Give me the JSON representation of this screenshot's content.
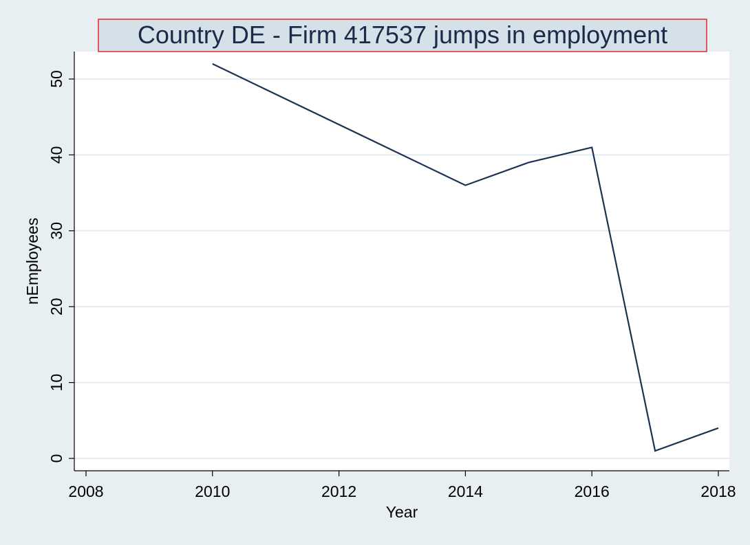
{
  "chart_data": {
    "type": "line",
    "title": "Country DE - Firm 417537  jumps in employment",
    "xlabel": "Year",
    "ylabel": "nEmployees",
    "xlim": [
      2008,
      2018
    ],
    "ylim": [
      0,
      52
    ],
    "x_ticks": [
      2008,
      2010,
      2012,
      2014,
      2016,
      2018
    ],
    "y_ticks": [
      0,
      10,
      20,
      30,
      40,
      50
    ],
    "grid": true,
    "legend": "none",
    "series": [
      {
        "x": [
          2010,
          2014,
          2015,
          2016,
          2017,
          2018
        ],
        "values": [
          52,
          36,
          39,
          41,
          1,
          4
        ]
      }
    ]
  },
  "colors": {
    "background": "#e8eff2",
    "plot_area": "#ffffff",
    "gridline": "#e3ebef",
    "line": "#1a3352",
    "title_box_fill": "#d4e1e8",
    "title_box_border": "#e8262d",
    "title_text": "#1a2a48"
  }
}
